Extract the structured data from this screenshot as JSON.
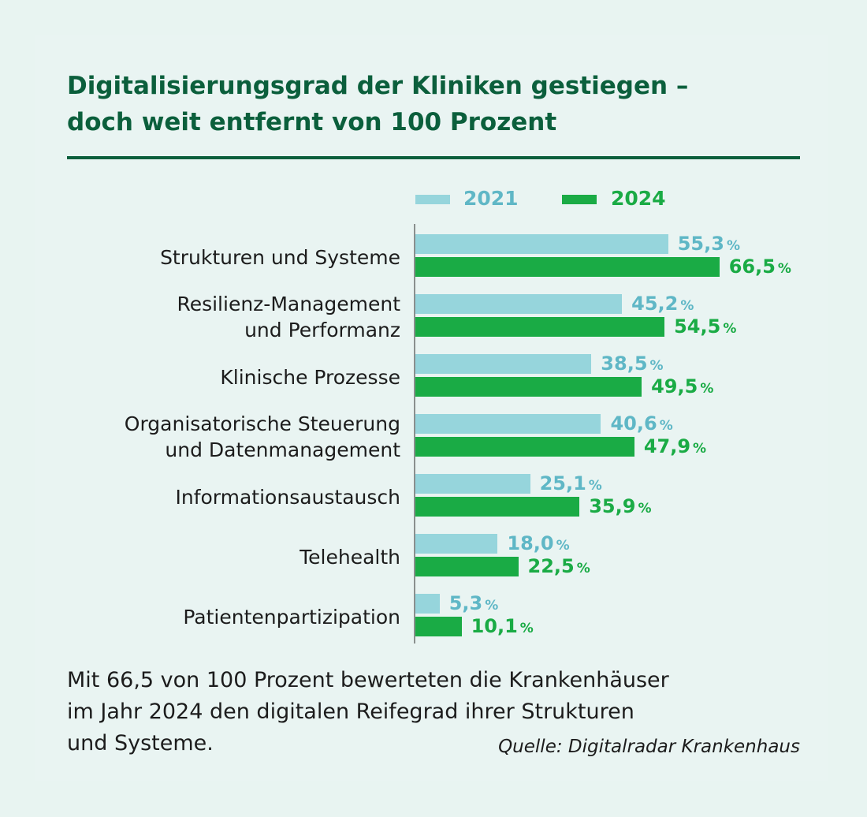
{
  "header": {
    "title_line1": "Digitalisierungsgrad der Kliniken gestiegen –",
    "title_line2": "doch weit entfernt von 100 Prozent"
  },
  "chart_data": {
    "type": "bar",
    "orientation": "horizontal",
    "title": "Digitalisierungsgrad der Kliniken gestiegen – doch weit entfernt von 100 Prozent",
    "unit": "%",
    "xlim": [
      0,
      100
    ],
    "legend_position": "top",
    "categories": [
      [
        "Strukturen und Systeme"
      ],
      [
        "Resilienz-Management",
        "und Performanz"
      ],
      [
        "Klinische Prozesse"
      ],
      [
        "Organisatorische Steuerung",
        "und Datenmanagement"
      ],
      [
        "Informationsaustausch"
      ],
      [
        "Telehealth"
      ],
      [
        "Patientenpartizipation"
      ]
    ],
    "series": [
      {
        "name": "2021",
        "color": "#96d5dc",
        "label_color": "#5fb7c6",
        "values": [
          55.3,
          45.2,
          38.5,
          40.6,
          25.1,
          18.0,
          5.3
        ],
        "labels": [
          "55,3",
          "45,2",
          "38,5",
          "40,6",
          "25,1",
          "18,0",
          "5,3"
        ]
      },
      {
        "name": "2024",
        "color": "#1aab45",
        "label_color": "#1aab45",
        "values": [
          66.5,
          54.5,
          49.5,
          47.9,
          35.9,
          22.5,
          10.1
        ],
        "labels": [
          "66,5",
          "54,5",
          "49,5",
          "47,9",
          "35,9",
          "22,5",
          "10,1"
        ]
      }
    ]
  },
  "caption": {
    "line1": "Mit 66,5 von 100 Prozent bewerteten die Krankenhäuser",
    "line2": "im Jahr 2024 den digitalen Reifegrad ihrer Strukturen",
    "line3": "und Systeme."
  },
  "source": "Quelle: Digitalradar Krankenhaus"
}
